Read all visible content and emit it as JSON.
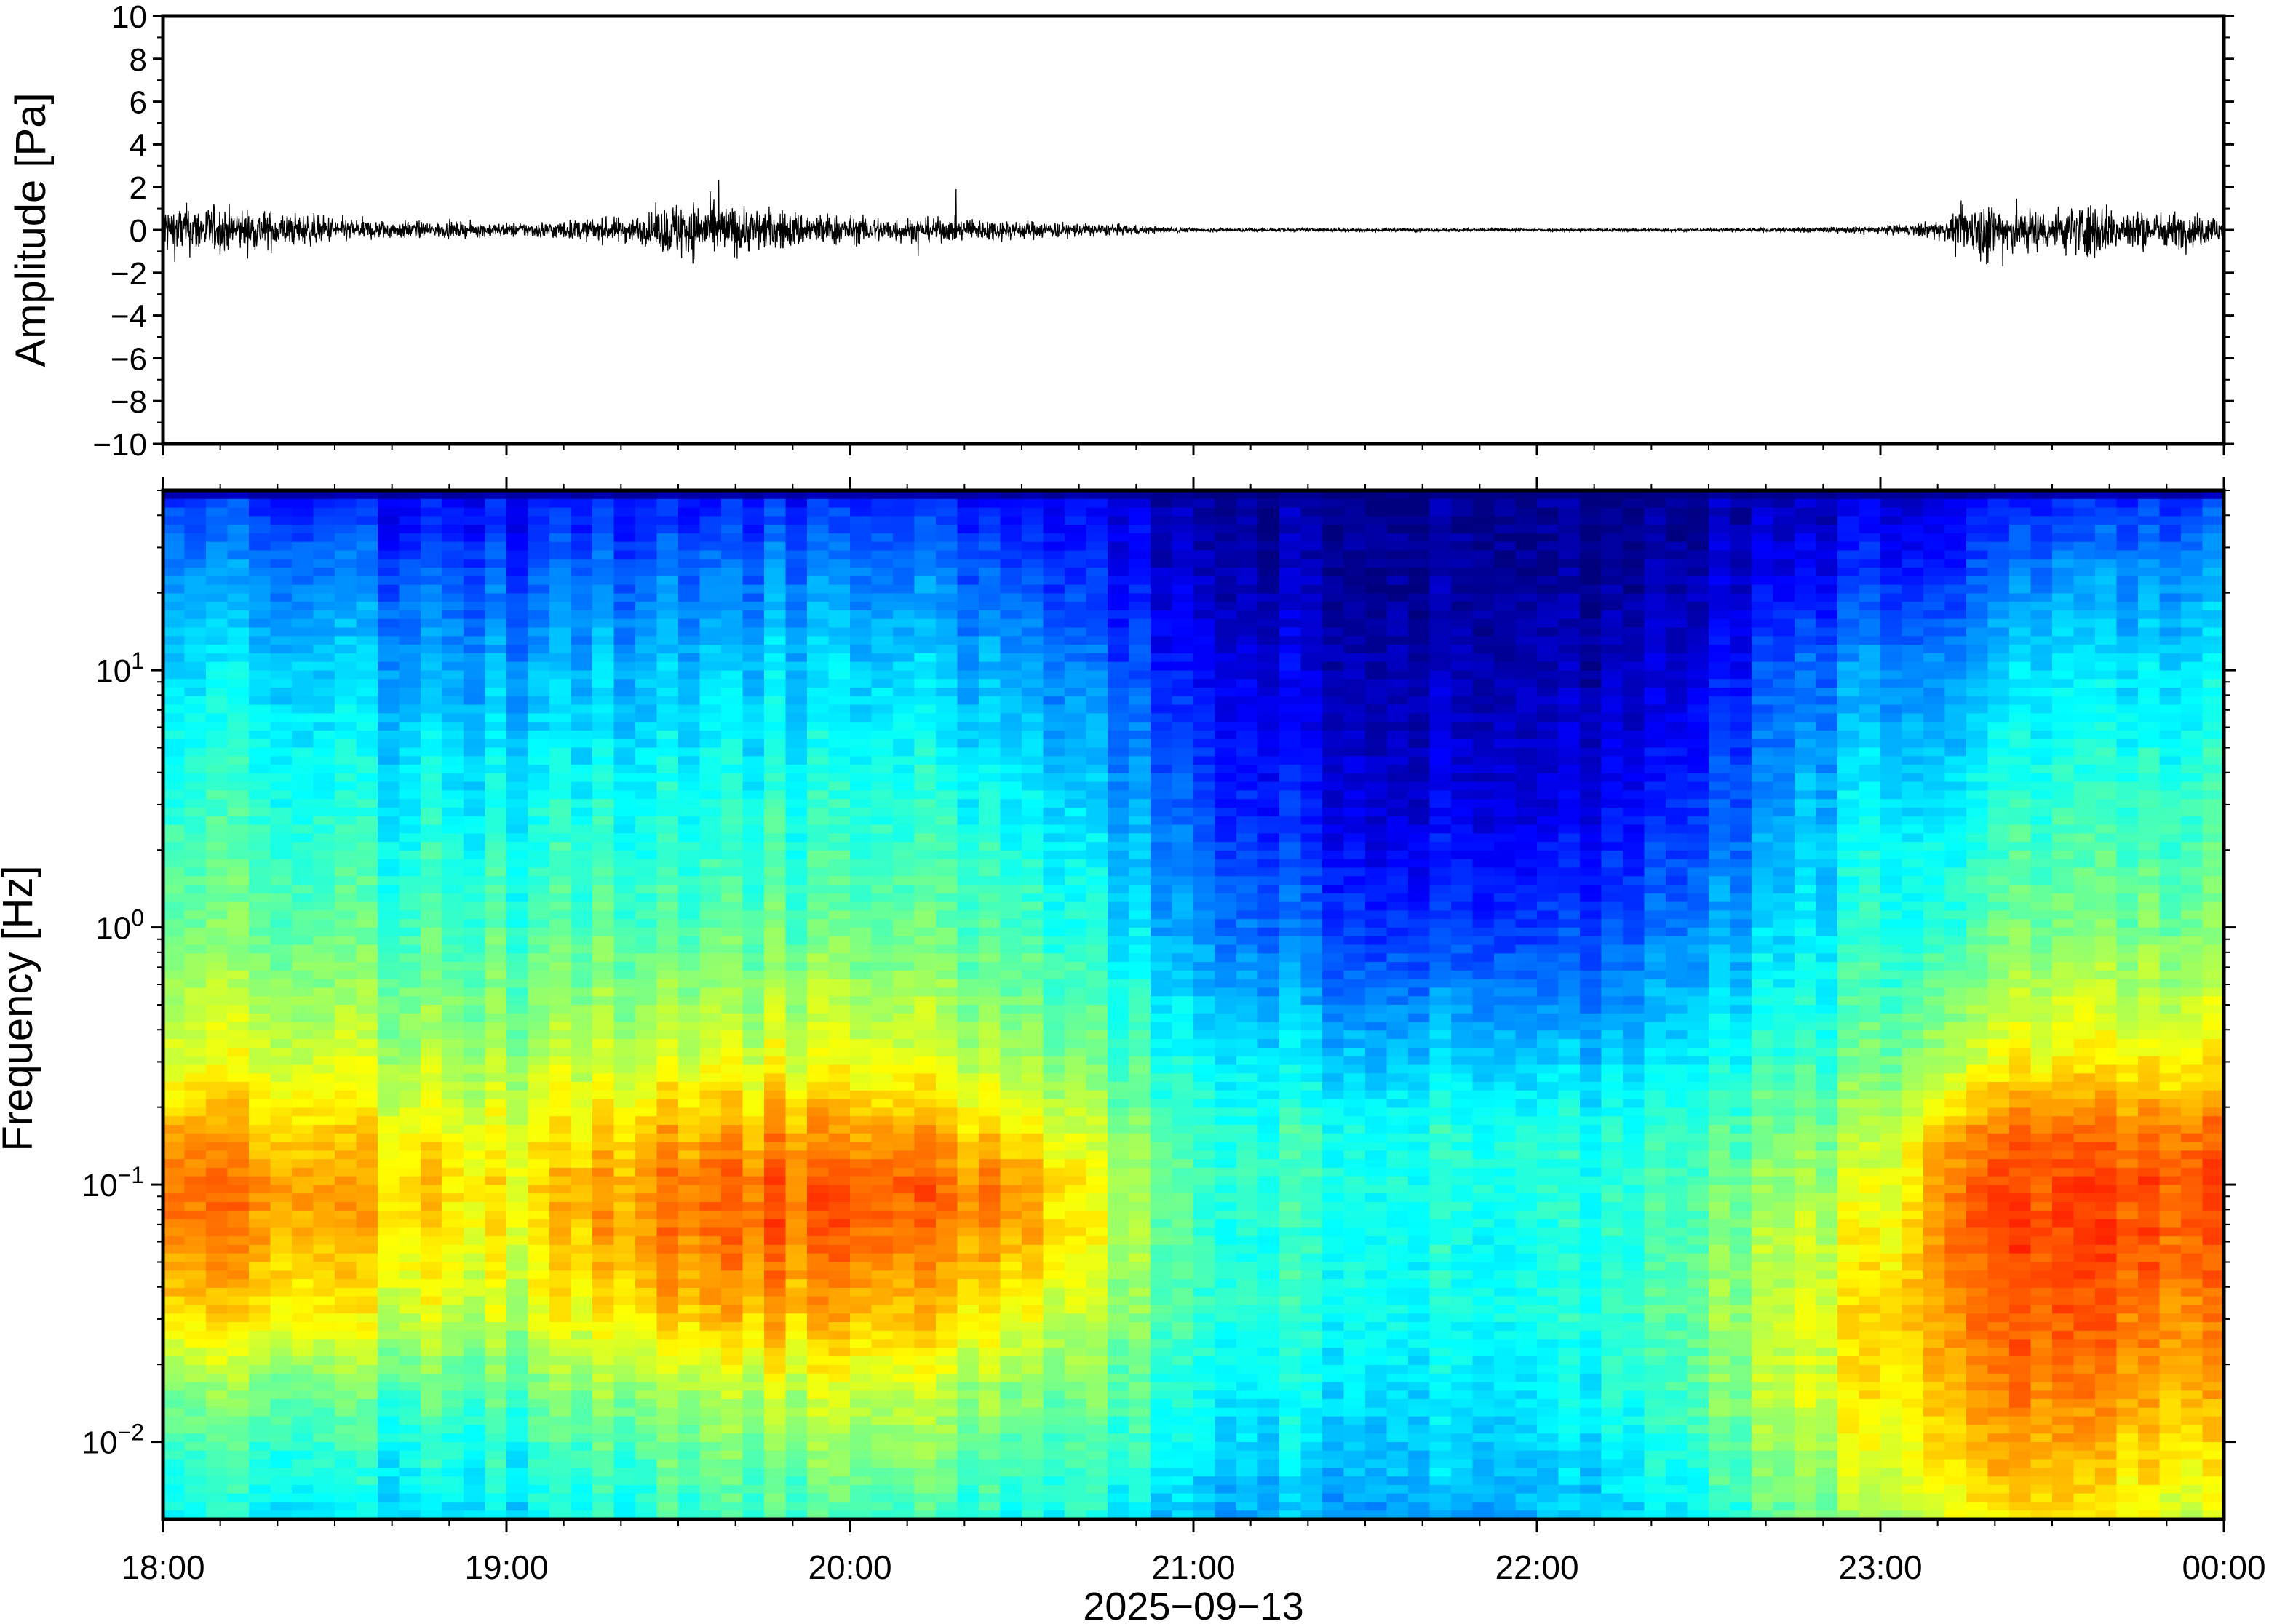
{
  "chart_data": [
    {
      "type": "line",
      "title": "",
      "ylabel": "Amplitude [Pa]",
      "ylim": [
        -10,
        10
      ],
      "yticks": [
        10,
        8,
        6,
        4,
        2,
        0,
        -2,
        -4,
        -6,
        -8,
        -10
      ],
      "ytick_labels": [
        "10",
        "8",
        "6",
        "4",
        "2",
        "0",
        "−2",
        "−4",
        "−6",
        "−8",
        "−10"
      ],
      "xlim_hours": [
        18,
        24
      ],
      "series": [
        {
          "values_description_free": true,
          "envelope": {
            "hours": [
              18.0,
              18.2,
              18.4,
              18.6,
              18.8,
              19.0,
              19.2,
              19.4,
              19.5,
              19.6,
              19.8,
              20.0,
              20.2,
              20.4,
              20.6,
              20.8,
              21.0,
              21.5,
              22.0,
              22.5,
              22.9,
              23.1,
              23.2,
              23.3,
              23.4,
              23.5,
              23.6,
              23.7,
              23.8,
              24.0
            ],
            "amplitude_pa": [
              1.3,
              1.1,
              0.8,
              0.5,
              0.4,
              0.35,
              0.5,
              0.7,
              1.5,
              1.3,
              1.0,
              0.7,
              0.6,
              0.55,
              0.4,
              0.25,
              0.1,
              0.08,
              0.07,
              0.08,
              0.15,
              0.3,
              0.6,
              1.6,
              1.2,
              1.0,
              1.4,
              1.1,
              0.9,
              0.8
            ]
          }
        }
      ]
    },
    {
      "type": "heatmap",
      "title": "",
      "xlabel": "2025−09−13",
      "ylabel": "Frequency [Hz]",
      "yscale": "log",
      "ylim": [
        0.005,
        50
      ],
      "yticks": [
        10,
        1,
        0.1,
        0.01
      ],
      "ytick_labels": [
        {
          "base": "10",
          "exp": "1"
        },
        {
          "base": "10",
          "exp": "0"
        },
        {
          "base": "10",
          "exp": "−1"
        },
        {
          "base": "10",
          "exp": "−2"
        }
      ],
      "xticks": [
        "18:00",
        "19:00",
        "20:00",
        "21:00",
        "22:00",
        "23:00",
        "00:00"
      ],
      "colormap": "jet",
      "colors": [
        "#00007f",
        "#0000ff",
        "#007fff",
        "#00ffff",
        "#7fff7f",
        "#ffff00",
        "#ff7f00",
        "#ff0000"
      ],
      "rows": {
        "log10_freq": [
          1.65,
          1.4,
          1.0,
          0.5,
          0.0,
          -0.5,
          -0.8,
          -1.0,
          -1.2,
          -1.5,
          -1.8,
          -2.1,
          -2.3
        ],
        "time_hours": [
          18.0,
          18.5,
          19.0,
          19.5,
          20.0,
          20.5,
          20.75,
          21.0,
          21.5,
          22.0,
          22.5,
          22.8,
          23.0,
          23.2,
          23.5,
          24.0
        ],
        "intensity": [
          [
            0.22,
            0.16,
            0.14,
            0.18,
            0.18,
            0.16,
            0.14,
            0.05,
            0.02,
            0.02,
            0.04,
            0.08,
            0.1,
            0.14,
            0.18,
            0.2
          ],
          [
            0.3,
            0.26,
            0.22,
            0.28,
            0.28,
            0.24,
            0.18,
            0.08,
            0.03,
            0.02,
            0.06,
            0.14,
            0.18,
            0.22,
            0.3,
            0.3
          ],
          [
            0.4,
            0.36,
            0.32,
            0.38,
            0.38,
            0.34,
            0.26,
            0.16,
            0.06,
            0.05,
            0.12,
            0.28,
            0.3,
            0.34,
            0.4,
            0.4
          ],
          [
            0.48,
            0.44,
            0.42,
            0.46,
            0.46,
            0.44,
            0.36,
            0.24,
            0.1,
            0.1,
            0.2,
            0.36,
            0.4,
            0.44,
            0.48,
            0.48
          ],
          [
            0.56,
            0.52,
            0.5,
            0.54,
            0.54,
            0.52,
            0.44,
            0.32,
            0.2,
            0.2,
            0.3,
            0.42,
            0.46,
            0.52,
            0.56,
            0.56
          ],
          [
            0.68,
            0.64,
            0.6,
            0.68,
            0.68,
            0.62,
            0.54,
            0.44,
            0.36,
            0.36,
            0.42,
            0.5,
            0.54,
            0.66,
            0.72,
            0.7
          ],
          [
            0.82,
            0.74,
            0.68,
            0.82,
            0.82,
            0.76,
            0.62,
            0.5,
            0.46,
            0.46,
            0.5,
            0.58,
            0.62,
            0.84,
            0.88,
            0.86
          ],
          [
            0.88,
            0.8,
            0.72,
            0.88,
            0.9,
            0.84,
            0.68,
            0.52,
            0.46,
            0.46,
            0.52,
            0.62,
            0.66,
            0.9,
            0.92,
            0.9
          ],
          [
            0.86,
            0.78,
            0.7,
            0.88,
            0.88,
            0.82,
            0.68,
            0.5,
            0.44,
            0.44,
            0.54,
            0.66,
            0.7,
            0.9,
            0.92,
            0.88
          ],
          [
            0.76,
            0.7,
            0.64,
            0.8,
            0.8,
            0.72,
            0.62,
            0.5,
            0.44,
            0.44,
            0.56,
            0.68,
            0.74,
            0.88,
            0.9,
            0.84
          ],
          [
            0.58,
            0.54,
            0.52,
            0.64,
            0.66,
            0.6,
            0.56,
            0.46,
            0.4,
            0.4,
            0.54,
            0.68,
            0.72,
            0.84,
            0.86,
            0.78
          ],
          [
            0.48,
            0.44,
            0.44,
            0.54,
            0.56,
            0.52,
            0.5,
            0.4,
            0.36,
            0.36,
            0.48,
            0.62,
            0.66,
            0.78,
            0.8,
            0.7
          ],
          [
            0.44,
            0.4,
            0.4,
            0.5,
            0.5,
            0.46,
            0.46,
            0.36,
            0.32,
            0.34,
            0.44,
            0.56,
            0.6,
            0.72,
            0.74,
            0.64
          ]
        ]
      }
    }
  ]
}
